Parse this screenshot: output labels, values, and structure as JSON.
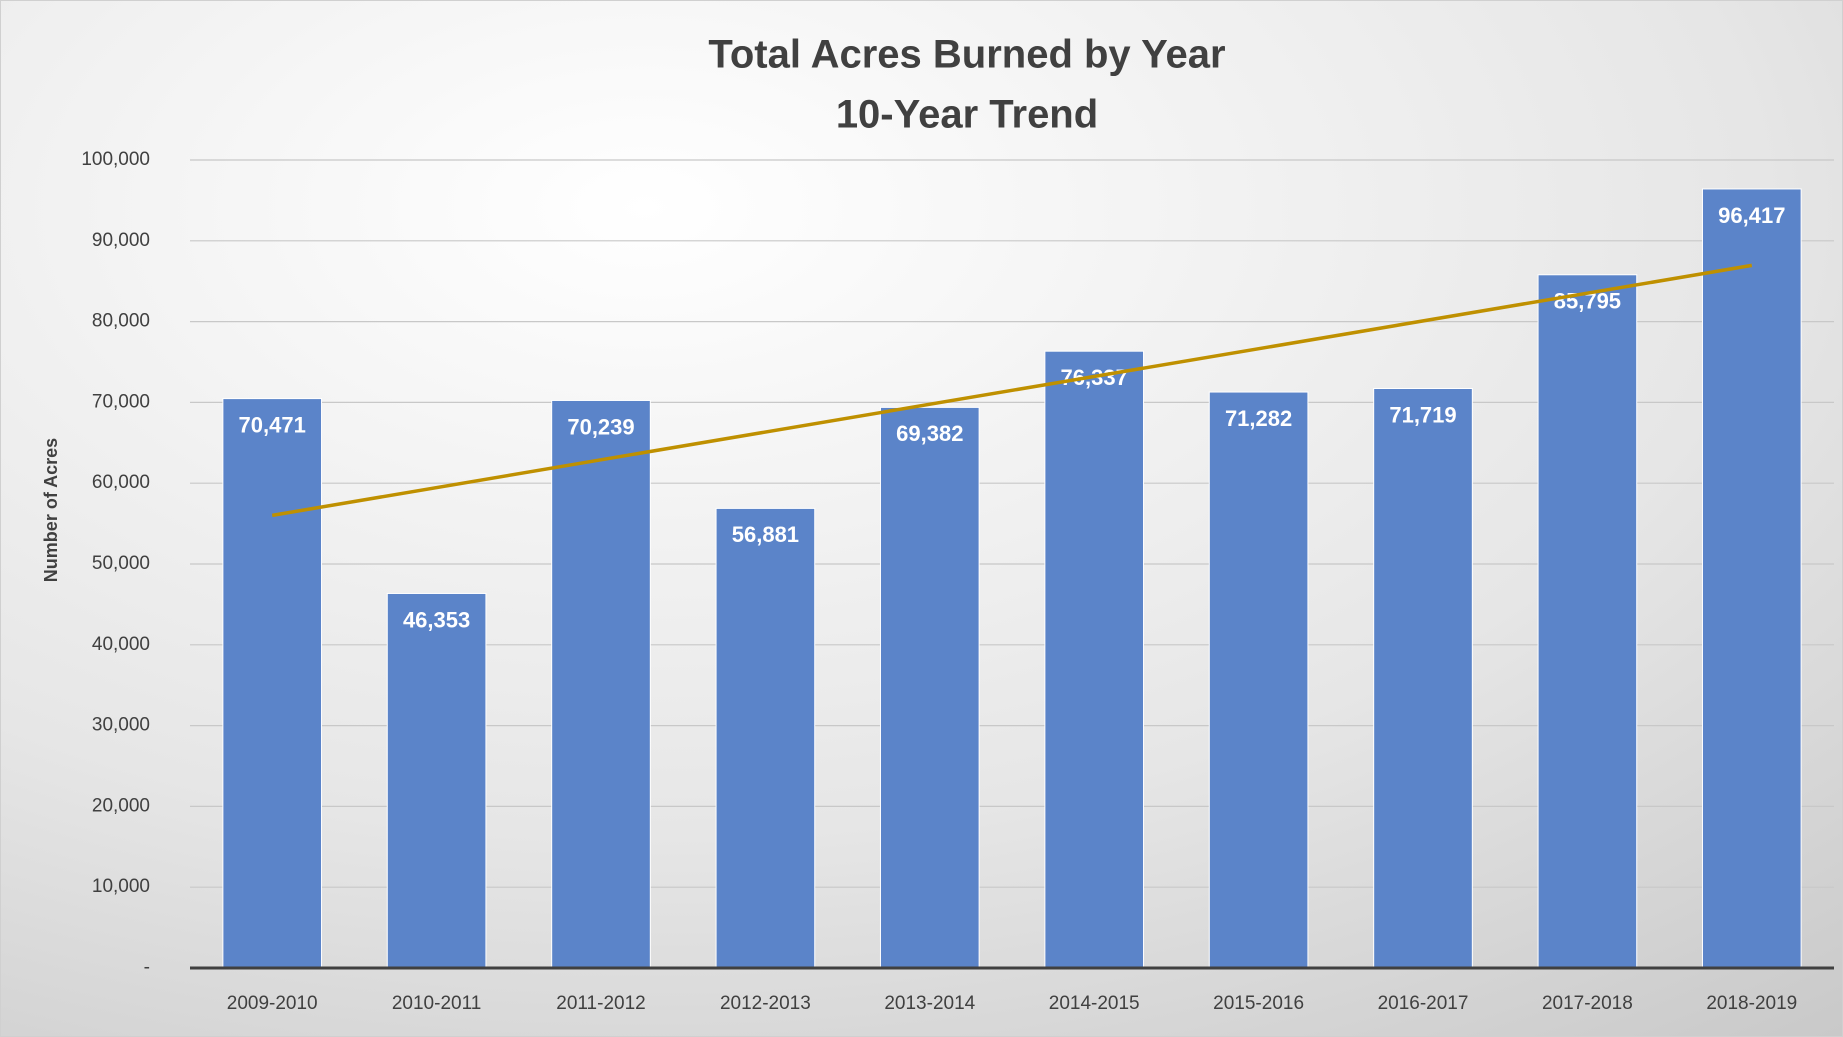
{
  "chart_data": {
    "type": "bar",
    "title": [
      "Total Acres Burned by Year",
      "10-Year Trend"
    ],
    "ylabel": "Number of Acres",
    "categories": [
      "2009-2010",
      "2010-2011",
      "2011-2012",
      "2012-2013",
      "2013-2014",
      "2014-2015",
      "2015-2016",
      "2016-2017",
      "2017-2018",
      "2018-2019"
    ],
    "values": [
      70471,
      46353,
      70239,
      56881,
      69382,
      76337,
      71282,
      71719,
      85795,
      96417
    ],
    "value_labels": [
      "70,471",
      "46,353",
      "70,239",
      "56,881",
      "69,382",
      "76,337",
      "71,282",
      "71,719",
      "85,795",
      "96,417"
    ],
    "color": "#5b84c9",
    "trend": {
      "color": "#bf9000",
      "start": 56019,
      "end": 86956
    },
    "ylim": [
      0,
      100000
    ],
    "yticks": [
      {
        "value": 0,
        "label": "-"
      },
      {
        "value": 10000,
        "label": "10,000"
      },
      {
        "value": 20000,
        "label": "20,000"
      },
      {
        "value": 30000,
        "label": "30,000"
      },
      {
        "value": 40000,
        "label": "40,000"
      },
      {
        "value": 50000,
        "label": "50,000"
      },
      {
        "value": 60000,
        "label": "60,000"
      },
      {
        "value": 70000,
        "label": "70,000"
      },
      {
        "value": 80000,
        "label": "80,000"
      },
      {
        "value": 90000,
        "label": "90,000"
      },
      {
        "value": 100000,
        "label": "100,000"
      }
    ],
    "grid": true
  }
}
